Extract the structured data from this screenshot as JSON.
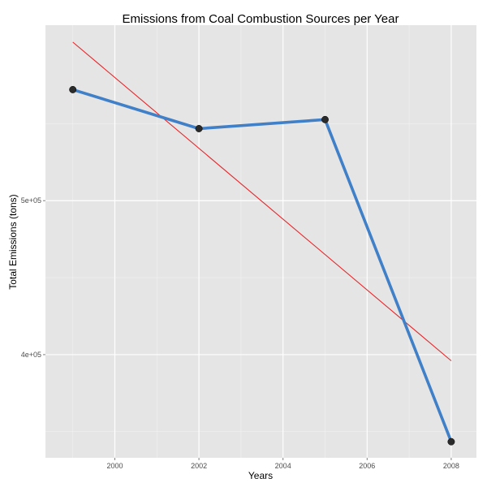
{
  "chart_data": {
    "type": "line",
    "title": "Emissions from Coal Combustion Sources per Year",
    "xlabel": "Years",
    "ylabel": "Total Emissions (tons)",
    "x": [
      1999,
      2002,
      2005,
      2008
    ],
    "series": [
      {
        "values": [
          572126,
          546789,
          552675,
          343432
        ],
        "color": "#4080c8",
        "markers": true
      },
      {
        "type": "trend-line",
        "x": [
          1999,
          2008
        ],
        "values": [
          603000,
          396000
        ],
        "color": "#e8262a"
      }
    ],
    "xlim": [
      1998.35,
      2008.6
    ],
    "ylim": [
      333000,
      614000
    ],
    "x_ticks": [
      2000,
      2002,
      2004,
      2006,
      2008
    ],
    "x_tick_labels": [
      "2000",
      "2002",
      "2004",
      "2006",
      "2008"
    ],
    "y_ticks": [
      400000,
      500000
    ],
    "y_tick_labels": [
      "4e+05",
      "5e+05"
    ],
    "grid": true,
    "panel_background": "#e5e5e5",
    "gridline_color": "#ffffff",
    "legend": "none"
  }
}
